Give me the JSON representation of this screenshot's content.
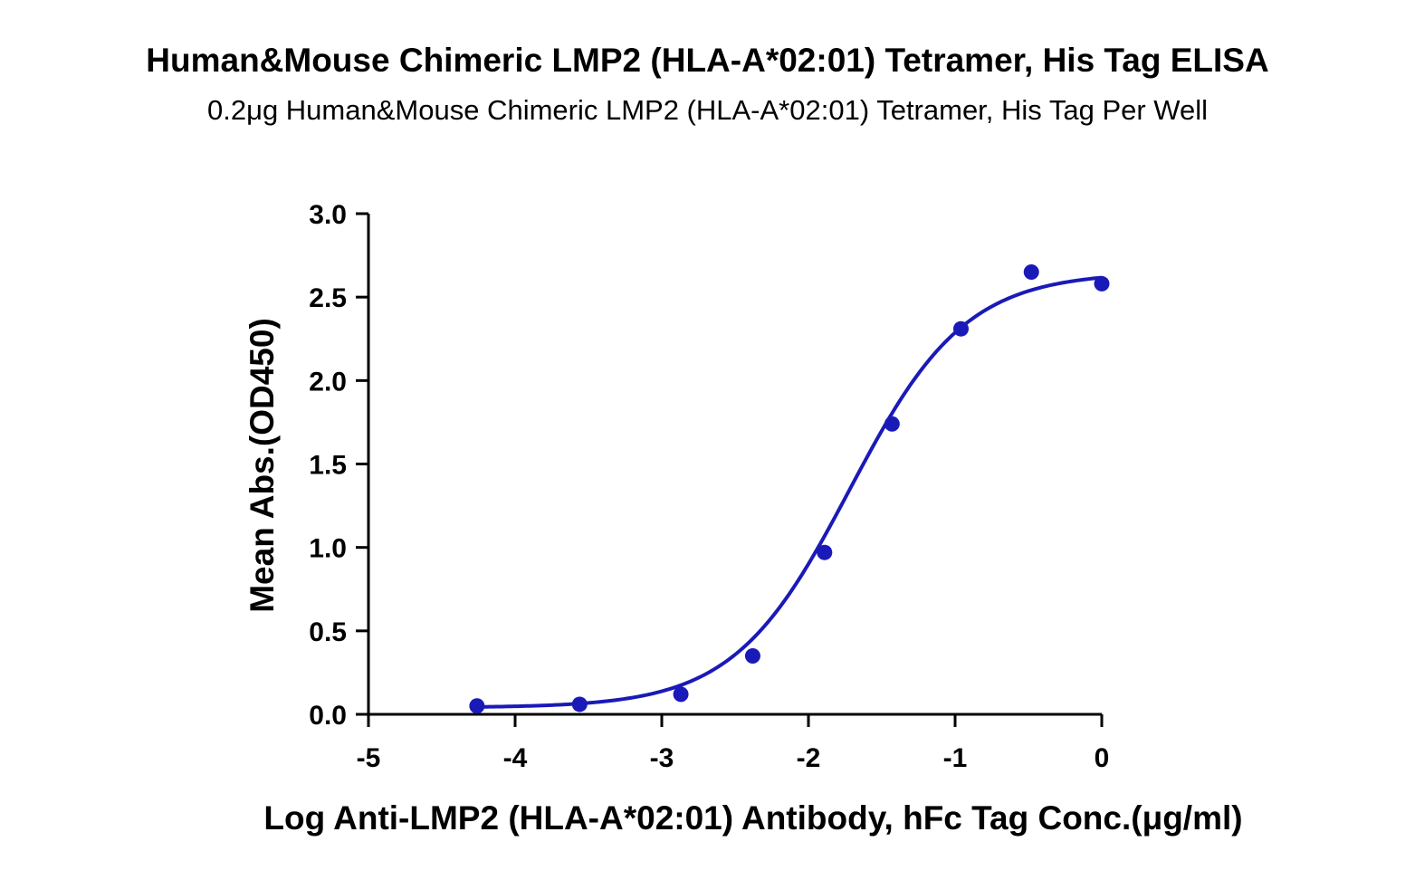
{
  "chart_data": {
    "type": "scatter",
    "title": "Human&Mouse Chimeric LMP2 (HLA-A*02:01) Tetramer, His Tag ELISA",
    "subtitle": "0.2μg Human&Mouse Chimeric LMP2 (HLA-A*02:01) Tetramer, His Tag Per Well",
    "xlabel": "Log Anti-LMP2 (HLA-A*02:01) Antibody, hFc Tag Conc.(μg/ml)",
    "ylabel": "Mean Abs.(OD450)",
    "xlim": [
      -5,
      0
    ],
    "ylim": [
      0.0,
      3.0
    ],
    "x_ticks": [
      "-5",
      "-4",
      "-3",
      "-2",
      "-1",
      "0"
    ],
    "y_ticks": [
      "0.0",
      "0.5",
      "1.0",
      "1.5",
      "2.0",
      "2.5",
      "3.0"
    ],
    "grid": false,
    "series": [
      {
        "color": "#1a1ab8",
        "x": [
          -4.26,
          -3.56,
          -2.87,
          -2.38,
          -1.89,
          -1.43,
          -0.96,
          -0.48,
          0.0
        ],
        "y": [
          0.05,
          0.06,
          0.12,
          0.35,
          0.97,
          1.74,
          2.31,
          2.65,
          2.58
        ]
      }
    ],
    "fit_curve": {
      "model": "4PL",
      "bottom": 0.04,
      "top": 2.65,
      "logEC50": -1.72,
      "hill": 1.1,
      "x_range": [
        -4.26,
        0.0
      ],
      "color": "#1a1ab8"
    }
  }
}
